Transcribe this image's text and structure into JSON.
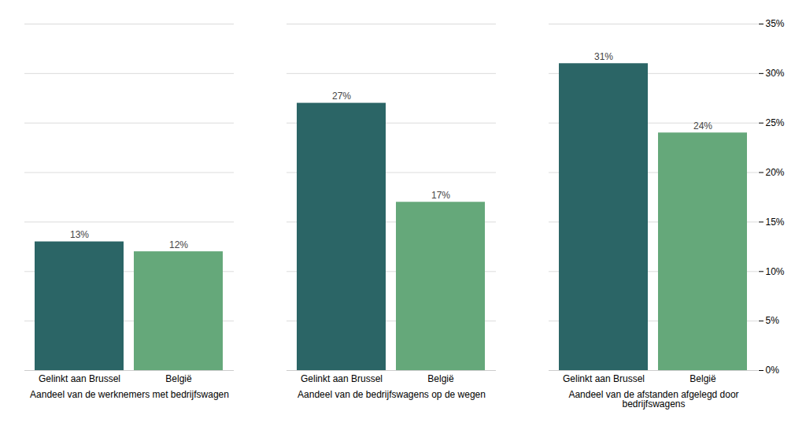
{
  "chart_data": {
    "type": "bar",
    "categories": [
      "Aandeel van de werknemers met bedrijfswagen",
      "Aandeel van de bedrijfswagens op de wegen",
      "Aandeel van de afstanden afgelegd door\nbedrijfswagens"
    ],
    "series": [
      {
        "name": "Gelinkt aan Brussel",
        "color": "#2b6566",
        "values": [
          13,
          27,
          31
        ],
        "value_labels": [
          "13%",
          "27%",
          "31%"
        ]
      },
      {
        "name": "België",
        "color": "#65a87a",
        "values": [
          12,
          17,
          24
        ],
        "value_labels": [
          "12%",
          "17%",
          "24%"
        ]
      }
    ],
    "ylim": [
      0,
      35
    ],
    "yticks": [
      {
        "value": 0,
        "label": "0%"
      },
      {
        "value": 5,
        "label": "5%"
      },
      {
        "value": 10,
        "label": "10%"
      },
      {
        "value": 15,
        "label": "15%"
      },
      {
        "value": 20,
        "label": "20%"
      },
      {
        "value": 25,
        "label": "25%"
      },
      {
        "value": 30,
        "label": "30%"
      },
      {
        "value": 35,
        "label": "35%"
      }
    ],
    "grid": true,
    "data_labels": true
  }
}
